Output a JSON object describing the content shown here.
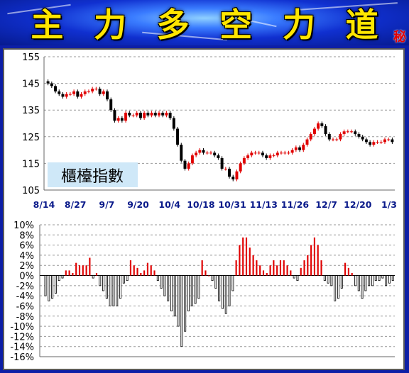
{
  "header": {
    "title_chars": [
      "主",
      "力",
      "多",
      "空",
      "力",
      "道"
    ],
    "badge": "秘"
  },
  "colors": {
    "up": "#e00000",
    "down": "#000000",
    "grid": "#999999",
    "date_labels": "#0a1a8a",
    "title": "#ffe600",
    "background": "#0d1fa6"
  },
  "chart_data": [
    {
      "type": "candlestick",
      "title": "櫃檯指數",
      "ylim": [
        105,
        155
      ],
      "yticks": [
        105,
        115,
        125,
        135,
        145,
        155
      ],
      "grid": true,
      "x_tick_labels": [
        "8/14",
        "8/27",
        "9/7",
        "9/20",
        "10/4",
        "10/18",
        "10/31",
        "11/13",
        "11/26",
        "12/7",
        "12/20",
        "1/3"
      ],
      "close": [
        145,
        144,
        142,
        141,
        140,
        141,
        141,
        142,
        140,
        141,
        142,
        142,
        143,
        143,
        141,
        142,
        139,
        135,
        131,
        132,
        131,
        134,
        133,
        133,
        134,
        132,
        134,
        133,
        134,
        133,
        134,
        133,
        134,
        132,
        128,
        122,
        116,
        113,
        115,
        118,
        119,
        120,
        119,
        119,
        119,
        118,
        117,
        113,
        113,
        110,
        109,
        112,
        115,
        117,
        118,
        119,
        119,
        119,
        118,
        117,
        118,
        118,
        119,
        119,
        119,
        119,
        120,
        121,
        120,
        122,
        124,
        126,
        128,
        130,
        129,
        126,
        124,
        124,
        124,
        126,
        127,
        127,
        127,
        126,
        125,
        124,
        123,
        122,
        123,
        123,
        123,
        124,
        124,
        123
      ]
    },
    {
      "type": "bar",
      "ylim": [
        -16,
        10
      ],
      "yticks": [
        -16,
        -14,
        -12,
        -10,
        -8,
        -6,
        -4,
        -2,
        0,
        2,
        4,
        6,
        8,
        10
      ],
      "tick_format": "percent",
      "values": [
        -4,
        -5,
        -4.5,
        -3.5,
        -1,
        -0.5,
        1,
        1,
        0.5,
        2.5,
        2,
        2,
        2,
        3.5,
        -0.5,
        0.5,
        -2,
        -3,
        -4.5,
        -6,
        -6,
        -6,
        -4.5,
        -1.5,
        -1,
        3,
        2,
        1.5,
        0.5,
        1,
        2.5,
        2,
        1,
        -1,
        -2.5,
        -4,
        -5,
        -7,
        -8,
        -10,
        -14,
        -11,
        -7,
        -6,
        -5.5,
        -4.5,
        3,
        1,
        0,
        -1,
        -2.5,
        -5,
        -6.5,
        -7.5,
        -6,
        -3,
        3,
        6,
        7.5,
        7.5,
        5.5,
        4,
        3,
        2,
        1,
        0.5,
        2,
        3,
        2,
        3,
        3,
        2,
        1,
        -0.5,
        -1,
        1.5,
        3,
        4,
        6,
        7.5,
        6,
        3,
        -1,
        -1.5,
        -2,
        -5,
        -4.5,
        -2.5,
        2.5,
        1.5,
        0.5,
        -2,
        -3,
        -4.5,
        -3,
        -2,
        -2,
        -1,
        -1,
        -0.5,
        -2,
        -1.5,
        -1
      ]
    }
  ]
}
